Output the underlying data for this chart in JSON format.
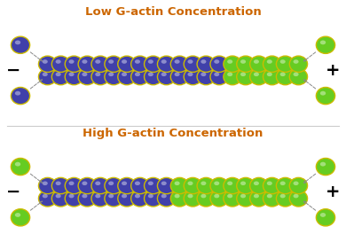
{
  "title_low": "Low G-actin Concentration",
  "title_high": "High G-actin Concentration",
  "title_color": "#cc6600",
  "title_fontsize": 9.5,
  "bg_color": "#ffffff",
  "purple": "#4040aa",
  "purple_light": "#7070cc",
  "green": "#66cc22",
  "green_light": "#99ee55",
  "yellow_outline": "#ccbb00",
  "minus_sign": "−",
  "plus_sign": "+",
  "sign_fontsize": 14,
  "sign_color": "#000000",
  "divider_color": "#cccccc"
}
